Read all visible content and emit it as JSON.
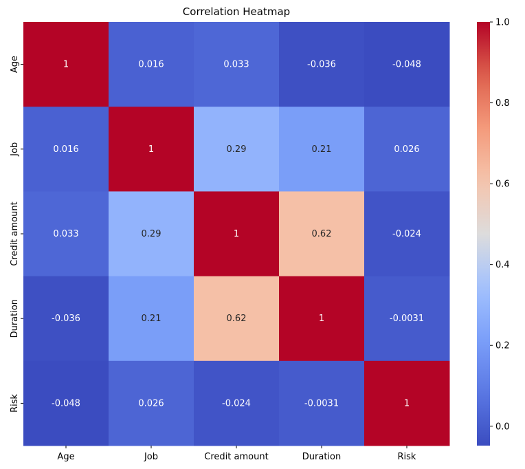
{
  "chart_data": {
    "type": "heatmap",
    "title": "Correlation Heatmap",
    "x_categories": [
      "Age",
      "Job",
      "Credit amount",
      "Duration",
      "Risk"
    ],
    "y_categories": [
      "Age",
      "Job",
      "Credit amount",
      "Duration",
      "Risk"
    ],
    "values": [
      [
        1,
        0.016,
        0.033,
        -0.036,
        -0.048
      ],
      [
        0.016,
        1,
        0.29,
        0.21,
        0.026
      ],
      [
        0.033,
        0.29,
        1,
        0.62,
        -0.024
      ],
      [
        -0.036,
        0.21,
        0.62,
        1,
        -0.0031
      ],
      [
        -0.048,
        0.026,
        -0.024,
        -0.0031,
        1
      ]
    ],
    "annotations": [
      [
        "1",
        "0.016",
        "0.033",
        "-0.036",
        "-0.048"
      ],
      [
        "0.016",
        "1",
        "0.29",
        "0.21",
        "0.026"
      ],
      [
        "0.033",
        "0.29",
        "1",
        "0.62",
        "-0.024"
      ],
      [
        "-0.036",
        "0.21",
        "0.62",
        "1",
        "-0.0031"
      ],
      [
        "-0.048",
        "0.026",
        "-0.024",
        "-0.0031",
        "1"
      ]
    ],
    "colormap": "coolwarm",
    "color_range": [
      -0.048,
      1.0
    ],
    "colorbar_ticks": [
      "0.0",
      "0.2",
      "0.4",
      "0.6",
      "0.8",
      "1.0"
    ],
    "colorbar_tick_values": [
      0,
      0.2,
      0.4,
      0.6,
      0.8,
      1.0
    ],
    "colorbar_placement": "right",
    "xlabel": "",
    "ylabel": ""
  }
}
